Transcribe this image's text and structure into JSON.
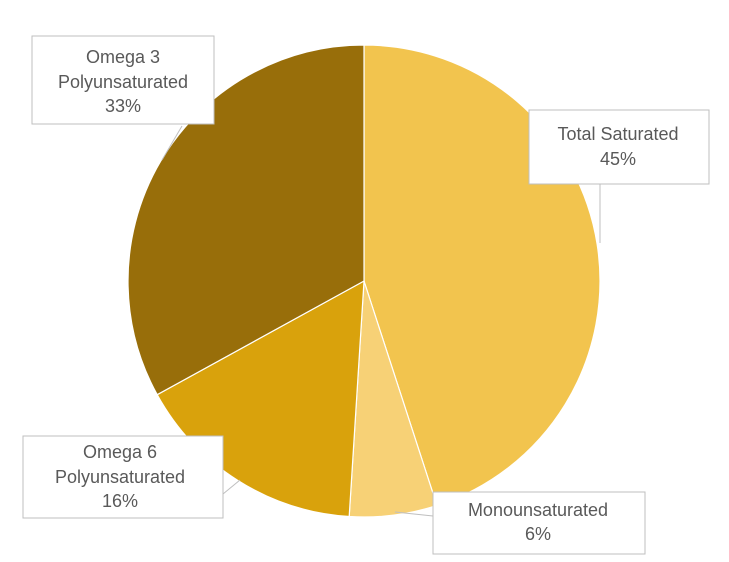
{
  "chart_data": {
    "type": "pie",
    "title": "",
    "start_angle_deg": 0,
    "direction": "clockwise",
    "slices": [
      {
        "name": "Total Saturated",
        "value": 45,
        "label_line1": "Total Saturated",
        "label_line2": "",
        "pct_label": "45%",
        "color": "#F2C44E"
      },
      {
        "name": "Monounsaturated",
        "value": 6,
        "label_line1": "Monounsaturated",
        "label_line2": "",
        "pct_label": "6%",
        "color": "#F7D176"
      },
      {
        "name": "Omega 6 Polyunsaturated",
        "value": 16,
        "label_line1": "Omega 6",
        "label_line2": "Polyunsaturated",
        "pct_label": "16%",
        "color": "#D9A20C"
      },
      {
        "name": "Omega 3 Polyunsaturated",
        "value": 33,
        "label_line1": "Omega 3",
        "label_line2": "Polyunsaturated",
        "pct_label": "33%",
        "color": "#986E0A"
      }
    ]
  }
}
